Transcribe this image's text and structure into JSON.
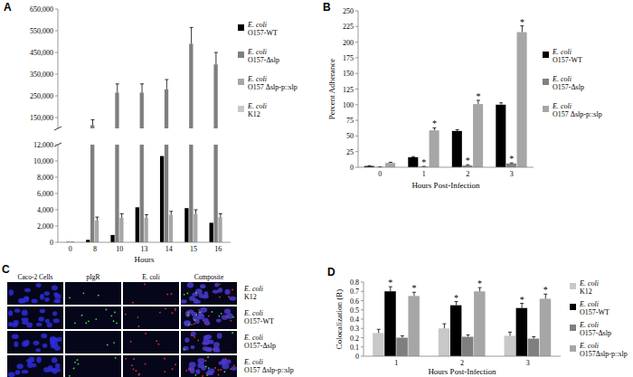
{
  "chart_data": [
    {
      "type": "bar",
      "title": "A",
      "xlabel": "Hours",
      "categories": [
        "0",
        "8",
        "10",
        "13",
        "14",
        "15",
        "16"
      ],
      "ylim": [
        0,
        650000
      ],
      "y_break": [
        12000,
        100000
      ],
      "yticks": [
        0,
        {
          "value": 2000,
          "label": "2,000"
        },
        {
          "value": 4000,
          "label": "4,000"
        },
        {
          "value": 6000,
          "label": "6,000"
        },
        {
          "value": 8000,
          "label": "8,000"
        },
        {
          "value": 10000,
          "label": "10,000"
        },
        {
          "value": 12000,
          "label": "12,000"
        },
        {
          "value": 150000,
          "label": "150,000"
        },
        {
          "value": 250000,
          "label": "250,000"
        },
        {
          "value": 350000,
          "label": "350,000"
        },
        {
          "value": 450000,
          "label": "450,000"
        },
        {
          "value": 550000,
          "label": "550,000"
        },
        {
          "value": 650000,
          "label": "650,000"
        }
      ],
      "legend": "right",
      "series": [
        {
          "name": "E. coli O157-WT",
          "color": "#000000",
          "values": [
            1,
            300,
            900,
            4300,
            10600,
            4200,
            2400
          ]
        },
        {
          "name": "E. coli O157-Δslp",
          "color": "#7f7f7f",
          "values": [
            1,
            115000,
            265000,
            265000,
            280000,
            490000,
            395000
          ],
          "errors": [
            0,
            25000,
            40000,
            40000,
            45000,
            75000,
            55000
          ]
        },
        {
          "name": "E. coli O157 Δslp-p::slp",
          "color": "#a6a6a6",
          "values": [
            1,
            2700,
            3000,
            3000,
            3400,
            3500,
            3100
          ],
          "errors": [
            0,
            400,
            500,
            400,
            400,
            500,
            400
          ]
        },
        {
          "name": "E. coli K12",
          "color": "#c8c8c8",
          "values": [
            1,
            1,
            1,
            1,
            1,
            1,
            1
          ]
        }
      ]
    },
    {
      "type": "bar",
      "title": "B",
      "xlabel": "Hours Post-Infection",
      "ylabel": "Percent Adherance",
      "categories": [
        "0",
        "1",
        "2",
        "3"
      ],
      "ylim": [
        0,
        250
      ],
      "yticks": [
        0,
        25,
        50,
        75,
        100,
        125,
        150,
        175,
        200,
        225,
        250
      ],
      "legend": "right",
      "series": [
        {
          "name": "E. coli O157-WT",
          "color": "#000000",
          "values": [
            2,
            16,
            58,
            100
          ],
          "errors": [
            0.5,
            1,
            2,
            3
          ]
        },
        {
          "name": "E. coli O157-Δslp",
          "color": "#7f7f7f",
          "values": [
            0.5,
            1,
            3,
            6
          ],
          "errors": [
            0.2,
            0.5,
            1,
            1
          ]
        },
        {
          "name": "E. coli O157 Δslp-p::slp",
          "color": "#a6a6a6",
          "values": [
            7,
            59,
            101,
            216
          ],
          "errors": [
            1,
            4,
            6,
            10
          ]
        }
      ],
      "annotations": [
        {
          "text": "*",
          "series": 1,
          "index": 1
        },
        {
          "text": "*",
          "series": 1,
          "index": 2
        },
        {
          "text": "*",
          "series": 1,
          "index": 3
        },
        {
          "text": "*",
          "series": 2,
          "index": 1
        },
        {
          "text": "*",
          "series": 2,
          "index": 2
        },
        {
          "text": "*",
          "series": 2,
          "index": 3
        }
      ]
    },
    {
      "type": "image_grid",
      "title": "C",
      "columns": [
        "Caco-2 Cells",
        "pIgR",
        "E. coli",
        "Composite"
      ],
      "rows": [
        "E. coli K12",
        "E. coli O157-WT",
        "E. coli O157-Δslp",
        "E. coli O157 Δslp-p::slp"
      ]
    },
    {
      "type": "bar",
      "title": "D",
      "xlabel": "Hours Post-Infection",
      "ylabel": "Colocalization (R)",
      "categories": [
        "1",
        "2",
        "3"
      ],
      "ylim": [
        0,
        0.8
      ],
      "yticks": [
        0,
        0.1,
        0.2,
        0.3,
        0.4,
        0.5,
        0.6,
        0.7,
        0.8
      ],
      "legend": "right",
      "series": [
        {
          "name": "E. coli K12",
          "color": "#c8c8c8",
          "values": [
            0.25,
            0.3,
            0.22
          ],
          "errors": [
            0.04,
            0.05,
            0.04
          ]
        },
        {
          "name": "E. coli O157-WT",
          "color": "#000000",
          "values": [
            0.7,
            0.55,
            0.52
          ],
          "errors": [
            0.05,
            0.04,
            0.05
          ]
        },
        {
          "name": "E. coli O157-Δslp",
          "color": "#7f7f7f",
          "values": [
            0.2,
            0.21,
            0.19
          ],
          "errors": [
            0.02,
            0.02,
            0.02
          ]
        },
        {
          "name": "E. coli O157Δslp-p::slp",
          "color": "#a6a6a6",
          "values": [
            0.65,
            0.7,
            0.62
          ],
          "errors": [
            0.04,
            0.04,
            0.05
          ]
        }
      ],
      "annotations": [
        {
          "text": "*",
          "series": 1,
          "index": 0
        },
        {
          "text": "*",
          "series": 1,
          "index": 1
        },
        {
          "text": "*",
          "series": 1,
          "index": 2
        },
        {
          "text": "*",
          "series": 3,
          "index": 0
        },
        {
          "text": "*",
          "series": 3,
          "index": 1
        },
        {
          "text": "*",
          "series": 3,
          "index": 2
        }
      ]
    }
  ]
}
